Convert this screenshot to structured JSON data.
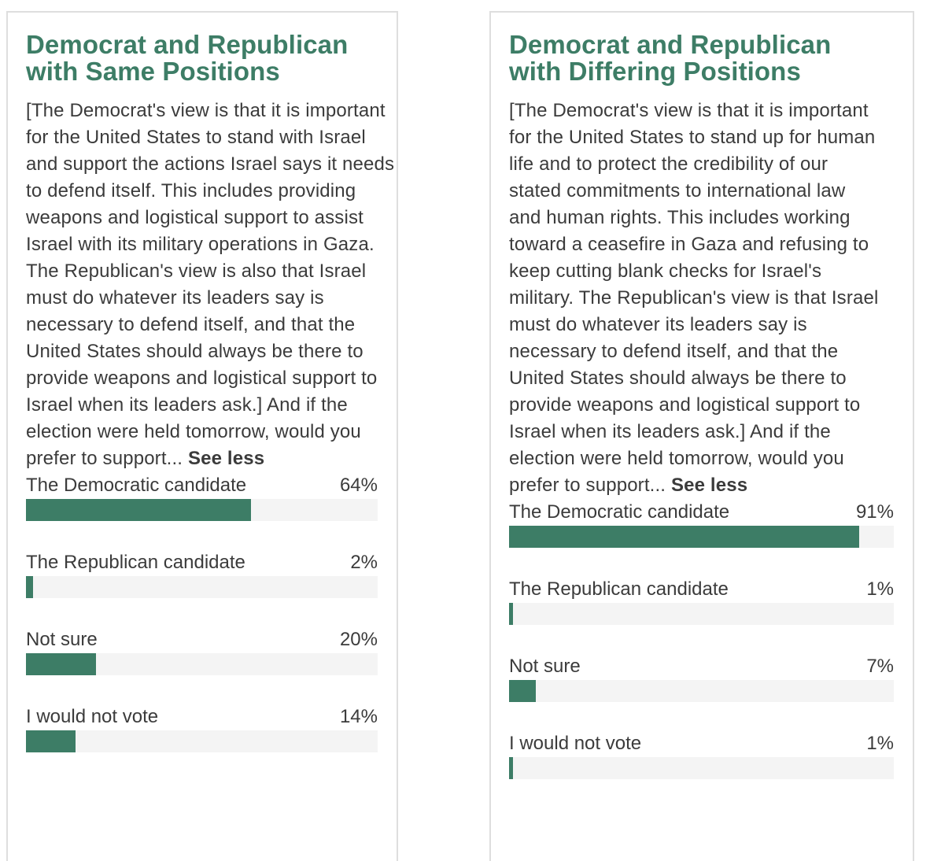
{
  "colors": {
    "accent": "#3d7d66",
    "track": "#f4f4f4",
    "text": "#3b3b3b"
  },
  "chart_data": [
    {
      "type": "bar",
      "title": "Democrat and Republican with Same Positions",
      "description": "[The Democrat's view is that it is important for the United States to stand with Israel and support the actions Israel says it needs to defend itself. This includes providing weapons and logistical support to assist Israel with its military operations in Gaza. The Republican's view is also that Israel must do whatever its leaders say is necessary to defend itself, and that the United States should always be there to provide weapons and logistical support to Israel when its leaders ask.] And if the election were held tomorrow, would you prefer to support...",
      "see_less": "See less",
      "categories": [
        "The Democratic candidate",
        "The Republican candidate",
        "Not sure",
        "I would not vote"
      ],
      "values": [
        64,
        2,
        20,
        14
      ],
      "value_labels": [
        "64%",
        "2%",
        "20%",
        "14%"
      ]
    },
    {
      "type": "bar",
      "title": "Democrat and Republican with Differing Positions",
      "description": "[The Democrat's view is that it is important for the United States to stand up for human life and to protect the credibility of our stated commitments to international law and human rights. This includes working toward a ceasefire in Gaza and refusing to keep cutting blank checks for Israel's military. The Republican's view is that Israel must do whatever its leaders say is necessary to defend itself, and that the United States should always be there to provide weapons and logistical support to Israel when its leaders ask.] And if the election were held tomorrow, would you prefer to support...",
      "see_less": "See less",
      "categories": [
        "The Democratic candidate",
        "The Republican candidate",
        "Not sure",
        "I would not vote"
      ],
      "values": [
        91,
        1,
        7,
        1
      ],
      "value_labels": [
        "91%",
        "1%",
        "7%",
        "1%"
      ]
    }
  ]
}
